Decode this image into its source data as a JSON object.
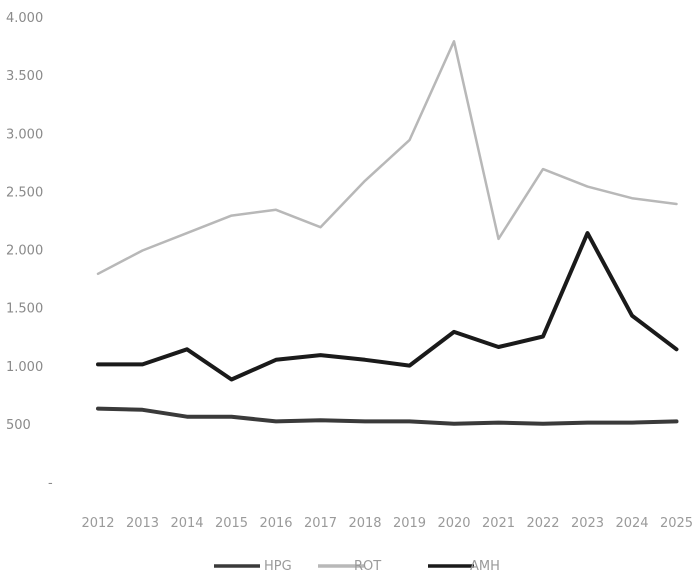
{
  "chart_data": {
    "type": "line",
    "title": "",
    "xlabel": "",
    "ylabel": "",
    "ylim": [
      0,
      4000
    ],
    "grid": false,
    "legend": "bottom",
    "y_tick_labels": [
      {
        "value": 0,
        "label": "-"
      },
      {
        "value": 500,
        "label": "500"
      },
      {
        "value": 1000,
        "label": "1.000"
      },
      {
        "value": 1500,
        "label": "1.500"
      },
      {
        "value": 2000,
        "label": "2.000"
      },
      {
        "value": 2500,
        "label": "2.500"
      },
      {
        "value": 3000,
        "label": "3.000"
      },
      {
        "value": 3500,
        "label": "3.500"
      },
      {
        "value": 4000,
        "label": "4.000"
      }
    ],
    "categories": [
      "2012",
      "2013",
      "2014",
      "2015",
      "2016",
      "2017",
      "2018",
      "2019",
      "2020",
      "2021",
      "2022",
      "2023",
      "2024",
      "2025"
    ],
    "series": [
      {
        "name": "HPG",
        "color": "#3a3a3a",
        "values": [
          640,
          630,
          570,
          570,
          530,
          540,
          530,
          530,
          510,
          520,
          510,
          520,
          520,
          530
        ]
      },
      {
        "name": "ROT",
        "color": "#b8b8b8",
        "values": [
          1800,
          2000,
          2150,
          2300,
          2350,
          2200,
          2600,
          2950,
          3800,
          2100,
          2700,
          2550,
          2450,
          2400
        ]
      },
      {
        "name": "AMH",
        "color": "#1a1a1a",
        "values": [
          1020,
          1020,
          1150,
          890,
          1060,
          1100,
          1060,
          1010,
          1300,
          1170,
          1260,
          2150,
          1440,
          1150
        ]
      }
    ]
  }
}
